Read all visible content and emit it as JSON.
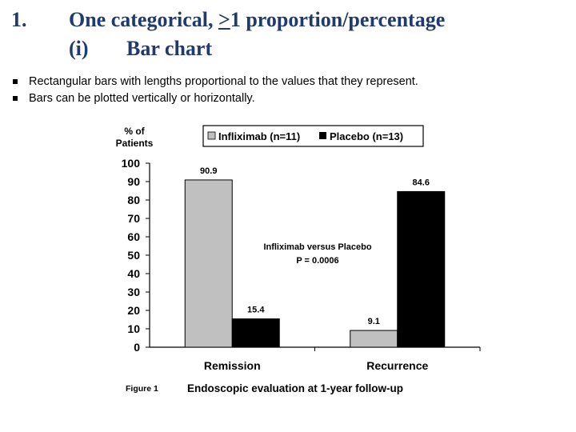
{
  "slide": {
    "title_number": "1.",
    "title_line1_pre": "One categorical, ",
    "title_line1_ge": ">",
    "title_line1_post": "1 proportion/percentage",
    "title_sub_number": "(i)",
    "title_sub_text": "Bar chart",
    "bullets": [
      "Rectangular bars with lengths proportional to the values that they represent.",
      "Bars can be plotted vertically or horizontally."
    ]
  },
  "chart_data": {
    "type": "bar",
    "categories": [
      "Remission",
      "Recurrence"
    ],
    "series": [
      {
        "name": "Infliximab (n=11)",
        "values": [
          90.9,
          9.1
        ],
        "color": "#c0c0c0"
      },
      {
        "name": "Placebo (n=13)",
        "values": [
          15.4,
          84.6
        ],
        "color": "#000000"
      }
    ],
    "data_labels": [
      [
        "90.9",
        "9.1"
      ],
      [
        "15.4",
        "84.6"
      ]
    ],
    "ylabel_line1": "% of",
    "ylabel_line2": "Patients",
    "ylim": [
      0,
      100
    ],
    "yticks": [
      0,
      10,
      20,
      30,
      40,
      50,
      60,
      70,
      80,
      90,
      100
    ],
    "annotation_line1": "Infliximab versus Placebo",
    "annotation_line2": "P = 0.0006",
    "figure_label": "Figure 1",
    "caption": "Endoscopic evaluation at 1-year follow-up",
    "legend_position": "top"
  }
}
